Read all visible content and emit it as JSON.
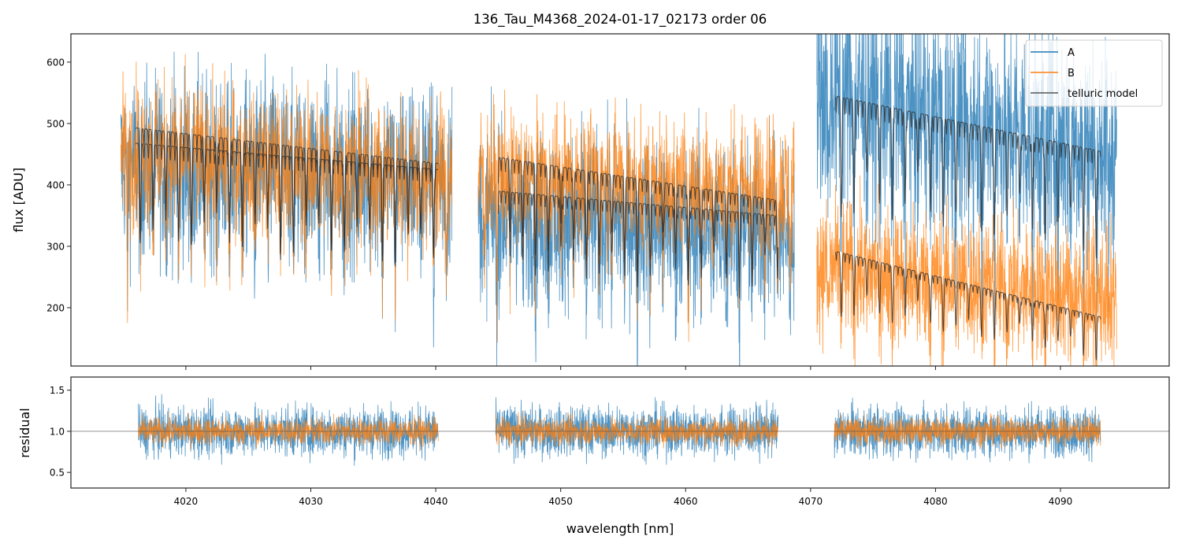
{
  "chart_data": {
    "type": "line",
    "title": "136_Tau_M4368_2024-01-17_02173  order 06",
    "xlabel": "wavelength [nm]",
    "xlim": [
      4010.8,
      4098.7
    ],
    "xticks": [
      4020,
      4030,
      4040,
      4050,
      4060,
      4070,
      4080,
      4090
    ],
    "top_panel": {
      "ylabel": "flux [ADU]",
      "ylim": [
        105,
        646
      ],
      "yticks": [
        200,
        300,
        400,
        500,
        600
      ],
      "legend": {
        "placement": "top-right",
        "entries": [
          "A",
          "B",
          "telluric model"
        ]
      },
      "series": [
        {
          "name": "A",
          "color": "#1f77b4",
          "segments": [
            {
              "start": 4014.8,
              "end": 4041.3,
              "level_start": 440,
              "level_end": 420,
              "noise": 75
            },
            {
              "start": 4043.4,
              "end": 4068.7,
              "level_start": 360,
              "level_end": 330,
              "noise": 70
            },
            {
              "start": 4070.5,
              "end": 4094.5,
              "level_start": 560,
              "level_end": 460,
              "noise": 90
            }
          ]
        },
        {
          "name": "B",
          "color": "#ff7f0e",
          "segments": [
            {
              "start": 4014.8,
              "end": 4041.3,
              "level_start": 460,
              "level_end": 420,
              "noise": 60
            },
            {
              "start": 4043.4,
              "end": 4068.7,
              "level_start": 420,
              "level_end": 400,
              "noise": 55
            },
            {
              "start": 4070.5,
              "end": 4094.5,
              "level_start": 270,
              "level_end": 220,
              "noise": 55
            }
          ]
        },
        {
          "name": "telluric model",
          "color": "#333333",
          "segments": [
            {
              "start": 4016.0,
              "end": 4040.2,
              "level_start": 493,
              "level_end": 435
            },
            {
              "start": 4016.0,
              "end": 4040.2,
              "level_start": 468,
              "level_end": 425
            },
            {
              "start": 4045.0,
              "end": 4067.4,
              "level_start": 445,
              "level_end": 375
            },
            {
              "start": 4045.0,
              "end": 4067.4,
              "level_start": 390,
              "level_end": 350
            },
            {
              "start": 4072.0,
              "end": 4093.2,
              "level_start": 545,
              "level_end": 455
            },
            {
              "start": 4072.0,
              "end": 4093.2,
              "level_start": 292,
              "level_end": 185
            }
          ]
        }
      ]
    },
    "bottom_panel": {
      "ylabel": "residual",
      "ylim": [
        0.31,
        1.66
      ],
      "yticks": [
        "0.5",
        "1.0",
        "1.5"
      ],
      "reference_line": 1.0,
      "series": [
        {
          "name": "A",
          "color": "#1f77b4",
          "noise": 0.28,
          "segments": [
            [
              4016.2,
              4040.2
            ],
            [
              4044.8,
              4067.4
            ],
            [
              4071.9,
              4093.2
            ]
          ]
        },
        {
          "name": "B",
          "color": "#ff7f0e",
          "noise": 0.15,
          "segments": [
            [
              4016.2,
              4040.2
            ],
            [
              4044.8,
              4067.4
            ],
            [
              4071.9,
              4093.2
            ]
          ]
        }
      ]
    }
  }
}
